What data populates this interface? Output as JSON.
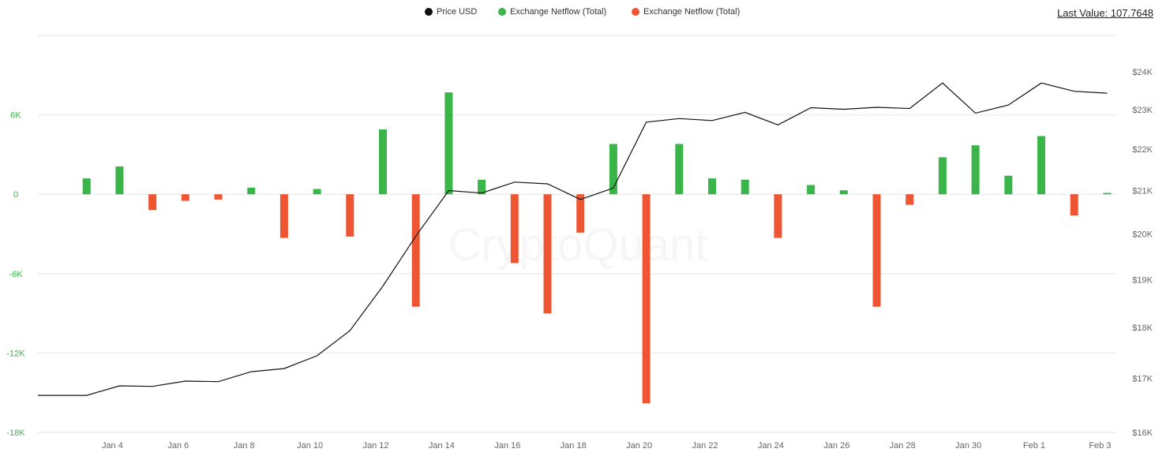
{
  "legend": {
    "items": [
      {
        "label": "Price USD",
        "color": "#111111"
      },
      {
        "label": "Exchange Netflow (Total)",
        "color": "#3ab54a"
      },
      {
        "label": "Exchange Netflow (Total)",
        "color": "#ee5533"
      }
    ]
  },
  "last_value": "Last Value: 107.7648",
  "watermark": "CryptoQuant",
  "chart_data": {
    "type": "bar+line",
    "x": [
      "Jan 3",
      "Jan 4",
      "Jan 5",
      "Jan 6",
      "Jan 7",
      "Jan 8",
      "Jan 9",
      "Jan 10",
      "Jan 11",
      "Jan 12",
      "Jan 13",
      "Jan 14",
      "Jan 15",
      "Jan 16",
      "Jan 17",
      "Jan 18",
      "Jan 19",
      "Jan 20",
      "Jan 21",
      "Jan 22",
      "Jan 23",
      "Jan 24",
      "Jan 25",
      "Jan 26",
      "Jan 27",
      "Jan 28",
      "Jan 29",
      "Jan 30",
      "Jan 31",
      "Feb 1",
      "Feb 2",
      "Feb 3"
    ],
    "x_tick_labels": [
      "Jan 4",
      "Jan 6",
      "Jan 8",
      "Jan 10",
      "Jan 12",
      "Jan 14",
      "Jan 16",
      "Jan 18",
      "Jan 20",
      "Jan 22",
      "Jan 24",
      "Jan 26",
      "Jan 28",
      "Jan 30",
      "Feb 1",
      "Feb 3"
    ],
    "netflow": [
      1200,
      2100,
      -1200,
      -500,
      -400,
      500,
      -3300,
      400,
      -3200,
      4900,
      -8500,
      7700,
      1100,
      -5200,
      -9000,
      -2900,
      3800,
      -15800,
      3800,
      1200,
      1100,
      -3300,
      700,
      300,
      -8500,
      -800,
      2800,
      3700,
      1400,
      4400,
      -1600,
      100
    ],
    "price": [
      16680,
      16680,
      16860,
      16850,
      16950,
      16940,
      17130,
      17190,
      17440,
      17940,
      18860,
      19950,
      21000,
      20940,
      21200,
      21160,
      20790,
      21060,
      22680,
      22770,
      22720,
      22930,
      22610,
      23050,
      23010,
      23060,
      23030,
      23700,
      22910,
      23120,
      23700,
      23480,
      23430
    ],
    "price_x": [
      "Jan 2",
      "Jan 3",
      "Jan 4",
      "Jan 5",
      "Jan 6",
      "Jan 7",
      "Jan 8",
      "Jan 9",
      "Jan 10",
      "Jan 11",
      "Jan 12",
      "Jan 13",
      "Jan 14",
      "Jan 15",
      "Jan 16",
      "Jan 17",
      "Jan 18",
      "Jan 19",
      "Jan 20",
      "Jan 21",
      "Jan 22",
      "Jan 23",
      "Jan 24",
      "Jan 25",
      "Jan 26",
      "Jan 27",
      "Jan 28",
      "Jan 29",
      "Jan 30",
      "Jan 31",
      "Feb 1",
      "Feb 2",
      "Feb 3"
    ],
    "y_left": {
      "min": -18000,
      "max": 12000,
      "ticks": [
        6000,
        0,
        -6000,
        -12000,
        -18000
      ],
      "tick_labels": [
        "6K",
        "0",
        "-6K",
        "-12K",
        "-18K"
      ],
      "color": "#3ab54a"
    },
    "y_right": {
      "min": 16000,
      "max": 25000,
      "ticks": [
        16000,
        17000,
        18000,
        19000,
        20000,
        21000,
        22000,
        23000,
        24000
      ],
      "tick_labels": [
        "$16K",
        "$17K",
        "$18K",
        "$19K",
        "$20K",
        "$21K",
        "$22K",
        "$23K",
        "$24K"
      ],
      "scale": "log"
    },
    "positive_color": "#3ab54a",
    "negative_color": "#ee5533",
    "line_color": "#111111",
    "grid": true,
    "legend_position": "top-center"
  }
}
